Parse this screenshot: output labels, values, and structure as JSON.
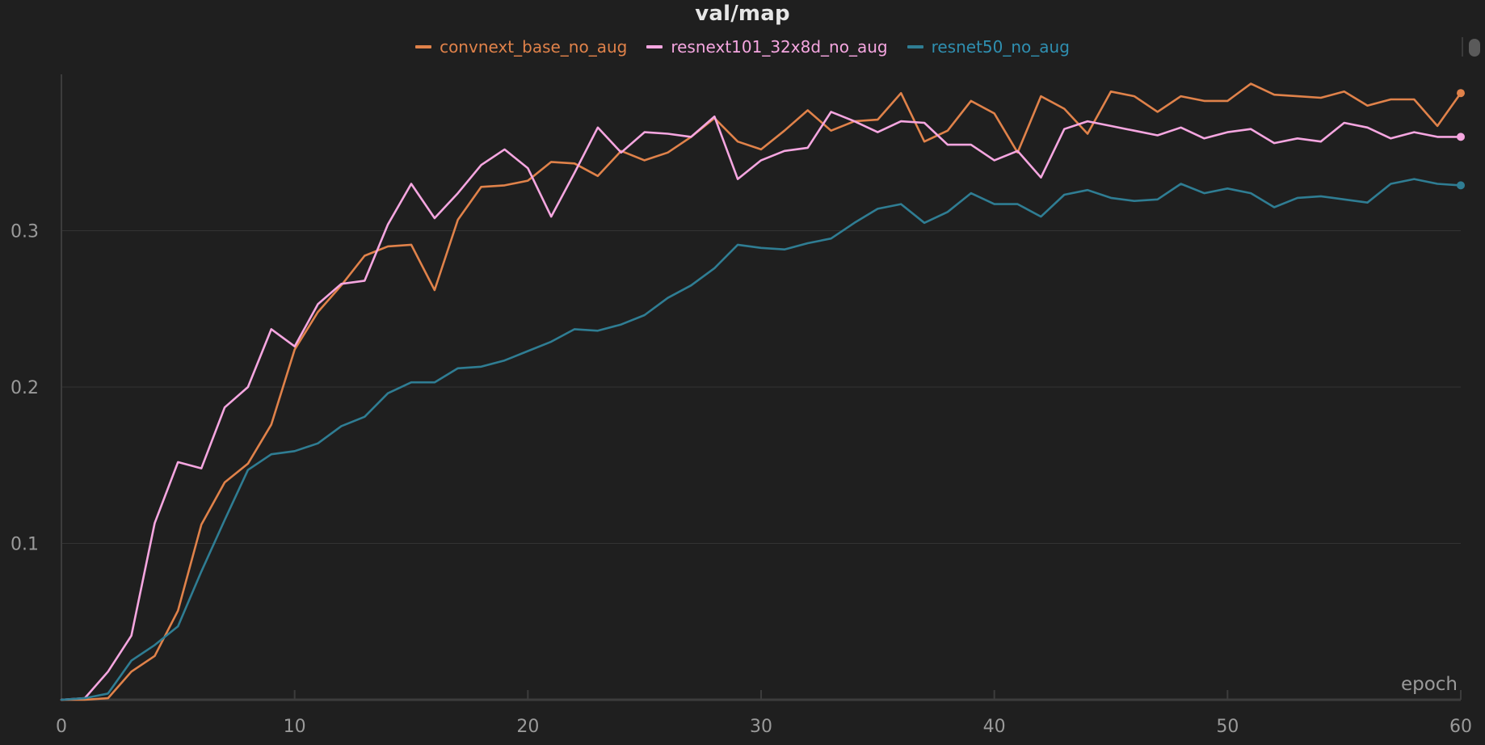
{
  "chart_data": {
    "type": "line",
    "title": "val/map",
    "xlabel": "epoch",
    "ylabel": "",
    "xlim": [
      0,
      60
    ],
    "ylim": [
      0,
      0.4
    ],
    "x_ticks": [
      "0",
      "10",
      "20",
      "30",
      "40",
      "50",
      "60"
    ],
    "y_ticks": [
      "0.1",
      "0.2",
      "0.3"
    ],
    "grid": "horizontal",
    "legend_position": "top-center",
    "x": [
      0,
      1,
      2,
      3,
      4,
      5,
      6,
      7,
      8,
      9,
      10,
      11,
      12,
      13,
      14,
      15,
      16,
      17,
      18,
      19,
      20,
      21,
      22,
      23,
      24,
      25,
      26,
      27,
      28,
      29,
      30,
      31,
      32,
      33,
      34,
      35,
      36,
      37,
      38,
      39,
      40,
      41,
      42,
      43,
      44,
      45,
      46,
      47,
      48,
      49,
      50,
      51,
      52,
      53,
      54,
      55,
      56,
      57,
      58,
      59,
      60
    ],
    "series": [
      {
        "name": "convnext_base_no_aug",
        "color": "#e0824a",
        "values": [
          0.0,
          0.0,
          0.001,
          0.018,
          0.028,
          0.057,
          0.112,
          0.139,
          0.151,
          0.176,
          0.224,
          0.248,
          0.265,
          0.284,
          0.29,
          0.291,
          0.262,
          0.307,
          0.328,
          0.329,
          0.332,
          0.344,
          0.343,
          0.335,
          0.351,
          0.345,
          0.35,
          0.36,
          0.372,
          0.357,
          0.352,
          0.364,
          0.377,
          0.364,
          0.37,
          0.371,
          0.388,
          0.357,
          0.364,
          0.383,
          0.375,
          0.35,
          0.386,
          0.378,
          0.362,
          0.389,
          0.386,
          0.376,
          0.386,
          0.383,
          0.383,
          0.394,
          0.387,
          0.386,
          0.385,
          0.389,
          0.38,
          0.384,
          0.384,
          0.367,
          0.388
        ]
      },
      {
        "name": "resnext101_32x8d_no_aug",
        "color": "#f5a6e0",
        "values": [
          0.0,
          0.001,
          0.018,
          0.041,
          0.113,
          0.152,
          0.148,
          0.187,
          0.2,
          0.237,
          0.226,
          0.253,
          0.266,
          0.268,
          0.304,
          0.33,
          0.308,
          0.324,
          0.342,
          0.352,
          0.34,
          0.309,
          0.337,
          0.366,
          0.35,
          0.363,
          0.362,
          0.36,
          0.373,
          0.333,
          0.345,
          0.351,
          0.353,
          0.376,
          0.37,
          0.363,
          0.37,
          0.369,
          0.355,
          0.355,
          0.345,
          0.351,
          0.334,
          0.365,
          0.37,
          0.367,
          0.364,
          0.361,
          0.366,
          0.359,
          0.363,
          0.365,
          0.356,
          0.359,
          0.357,
          0.369,
          0.366,
          0.359,
          0.363,
          0.36,
          0.36
        ]
      },
      {
        "name": "resnet50_no_aug",
        "color": "#2f7d93",
        "values": [
          0.0,
          0.001,
          0.004,
          0.025,
          0.035,
          0.047,
          0.082,
          0.115,
          0.147,
          0.157,
          0.159,
          0.164,
          0.175,
          0.181,
          0.196,
          0.203,
          0.203,
          0.212,
          0.213,
          0.217,
          0.223,
          0.229,
          0.237,
          0.236,
          0.24,
          0.246,
          0.257,
          0.265,
          0.276,
          0.291,
          0.289,
          0.288,
          0.292,
          0.295,
          0.305,
          0.314,
          0.317,
          0.305,
          0.312,
          0.324,
          0.317,
          0.317,
          0.309,
          0.323,
          0.326,
          0.321,
          0.319,
          0.32,
          0.33,
          0.324,
          0.327,
          0.324,
          0.315,
          0.321,
          0.322,
          0.32,
          0.318,
          0.33,
          0.333,
          0.33,
          0.329
        ]
      }
    ]
  }
}
